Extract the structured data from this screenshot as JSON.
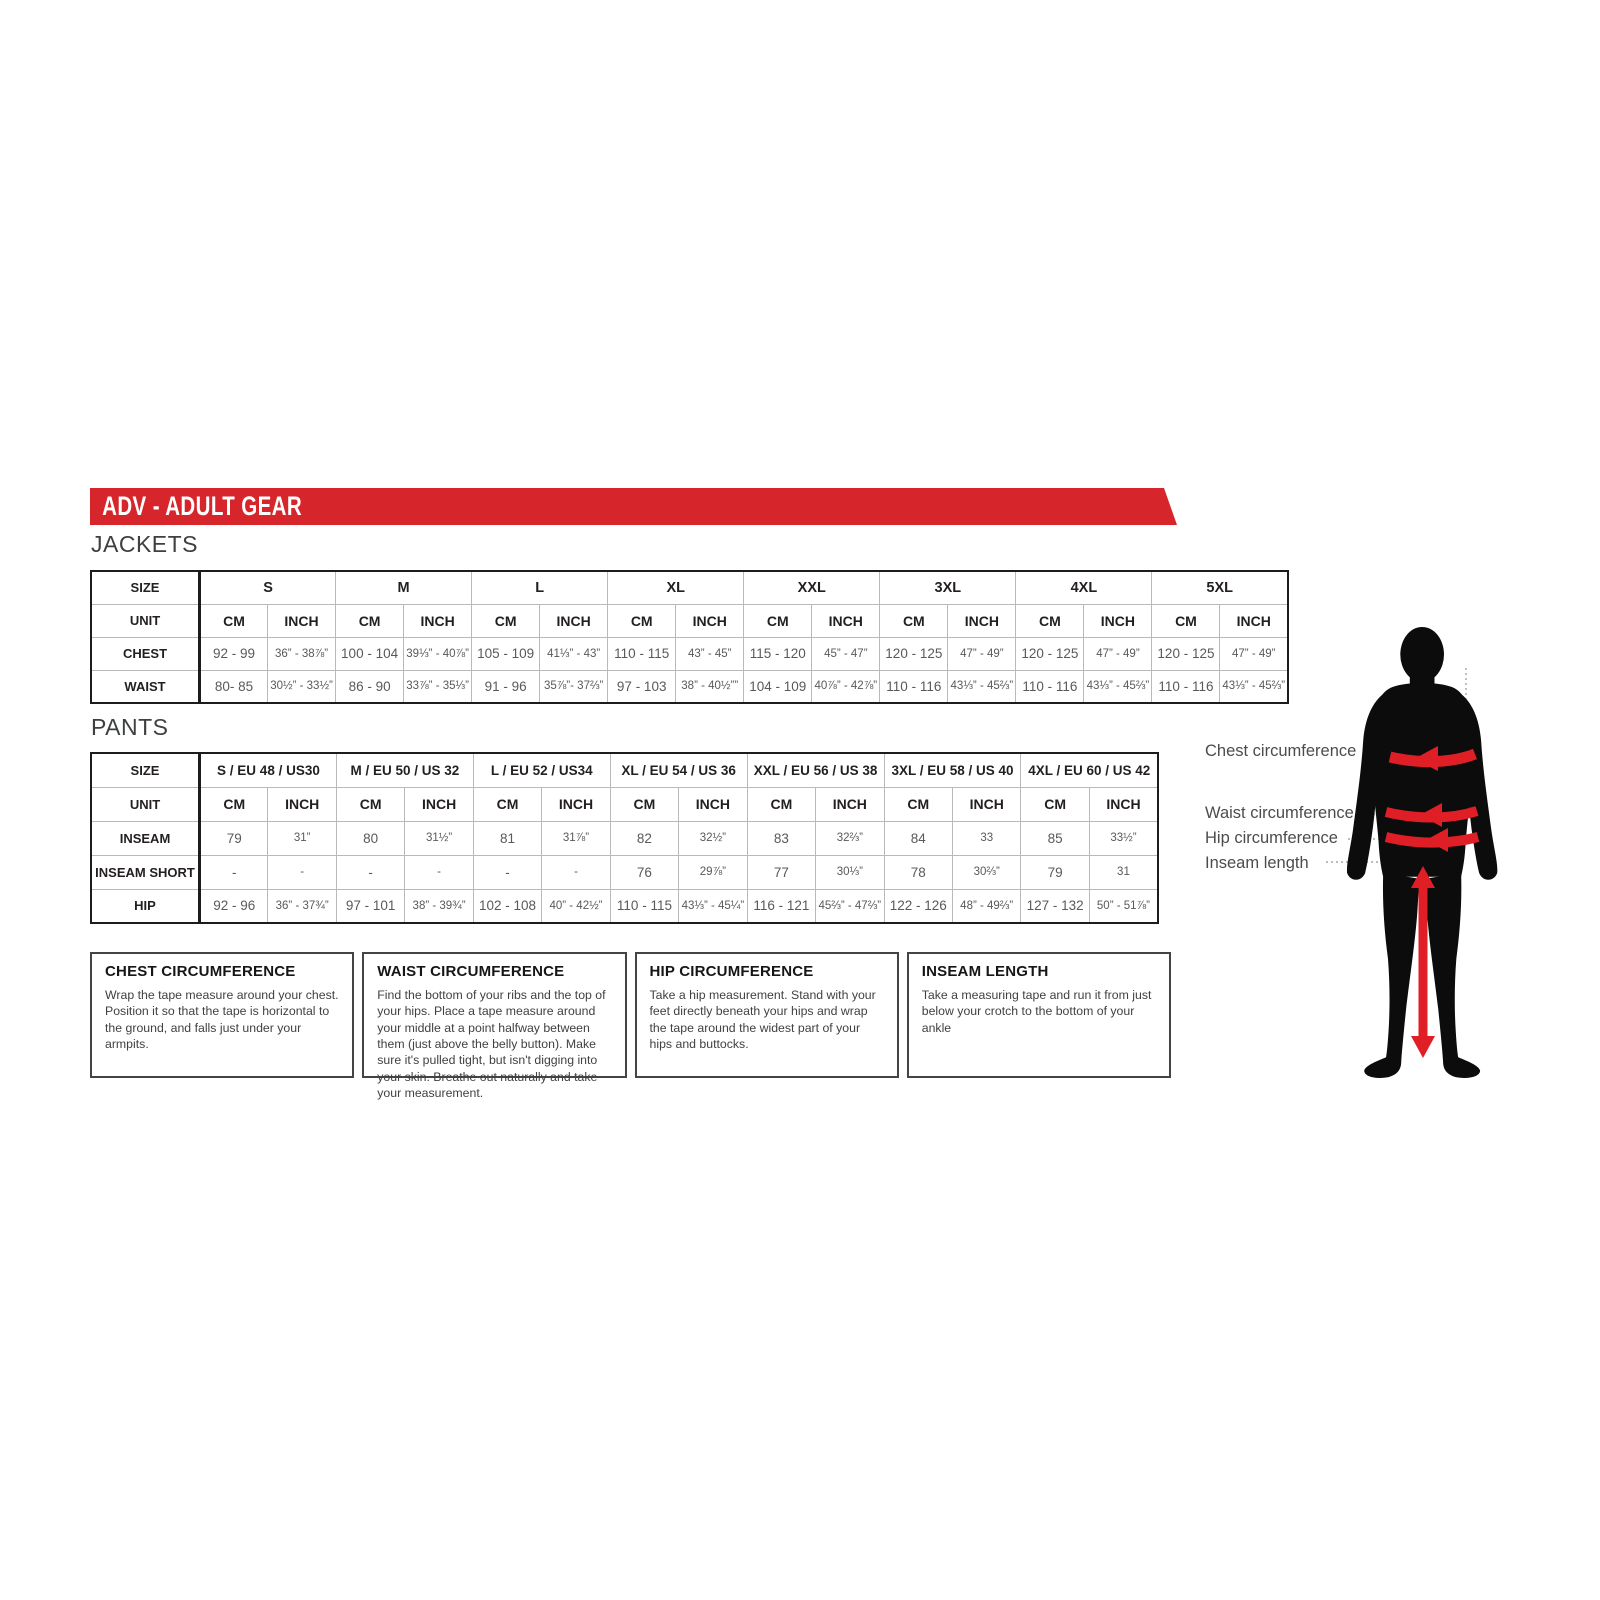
{
  "colors": {
    "banner_red": "#d6252b",
    "arrow_red": "#e01e25",
    "silhouette_black": "#0c0c0c",
    "table_border": "#1c1c1e",
    "grid_line": "#b7b9bb",
    "header_text": "#231f20",
    "value_text": "#58595b"
  },
  "banner": {
    "title": "ADV - ADULT GEAR"
  },
  "jackets": {
    "section_label": "JACKETS",
    "size_header": "SIZE",
    "unit_header": "UNIT",
    "cm_label": "CM",
    "inch_label": "INCH",
    "sizes": [
      "S",
      "M",
      "L",
      "XL",
      "XXL",
      "3XL",
      "4XL",
      "5XL"
    ],
    "rows": [
      {
        "label": "CHEST",
        "cells": [
          [
            "92 - 99",
            "36” - 38⅞”"
          ],
          [
            "100 - 104",
            "39⅓” - 40⅞”"
          ],
          [
            "105 - 109",
            "41⅓” - 43”"
          ],
          [
            "110 - 115",
            "43” - 45”"
          ],
          [
            "115 - 120",
            "45” - 47”"
          ],
          [
            "120 - 125",
            "47” - 49”"
          ],
          [
            "120 - 125",
            "47” - 49”"
          ],
          [
            "120 - 125",
            "47” - 49”"
          ]
        ]
      },
      {
        "label": "WAIST",
        "cells": [
          [
            "80- 85",
            "30½” - 33½”"
          ],
          [
            "86 - 90",
            "33⅞” - 35⅓”"
          ],
          [
            "91 - 96",
            "35⅞”- 37⅔”"
          ],
          [
            "97 - 103",
            "38” - 40½””"
          ],
          [
            "104 - 109",
            "40⅞” - 42⅞”"
          ],
          [
            "110 - 116",
            "43⅓” - 45⅔”"
          ],
          [
            "110 - 116",
            "43⅓” - 45⅔”"
          ],
          [
            "110 - 116",
            "43⅓” - 45⅔”"
          ]
        ]
      }
    ]
  },
  "pants": {
    "section_label": "PANTS",
    "size_header": "SIZE",
    "unit_header": "UNIT",
    "cm_label": "CM",
    "inch_label": "INCH",
    "sizes": [
      "S / EU 48 / US30",
      "M / EU 50 / US 32",
      "L / EU 52 / US34",
      "XL / EU 54 / US 36",
      "XXL / EU 56 / US 38",
      "3XL / EU 58 / US 40",
      "4XL / EU 60 / US 42"
    ],
    "rows": [
      {
        "label": "INSEAM",
        "cells": [
          [
            "79",
            "31”"
          ],
          [
            "80",
            "31½”"
          ],
          [
            "81",
            "31⅞”"
          ],
          [
            "82",
            "32½”"
          ],
          [
            "83",
            "32⅔”"
          ],
          [
            "84",
            "33"
          ],
          [
            "85",
            "33½”"
          ]
        ]
      },
      {
        "label": "INSEAM SHORT",
        "cells": [
          [
            "-",
            "-"
          ],
          [
            "-",
            "-"
          ],
          [
            "-",
            "-"
          ],
          [
            "76",
            "29⅞”"
          ],
          [
            "77",
            "30⅓”"
          ],
          [
            "78",
            "30⅔”"
          ],
          [
            "79",
            "31"
          ]
        ]
      },
      {
        "label": "HIP",
        "cells": [
          [
            "92 - 96",
            "36” - 37¾”"
          ],
          [
            "97 - 101",
            "38” - 39¾”"
          ],
          [
            "102 - 108",
            "40” - 42½”"
          ],
          [
            "110 - 115",
            "43⅓” - 45¼”"
          ],
          [
            "116 - 121",
            "45⅔” - 47⅔”"
          ],
          [
            "122 - 126",
            "48” - 49⅔”"
          ],
          [
            "127 - 132",
            "50” - 51⅞”"
          ]
        ]
      }
    ]
  },
  "instructions": [
    {
      "title": "CHEST CIRCUMFERENCE",
      "body": "Wrap the tape measure around your chest. Position it so that the tape is horizontal to the ground, and falls just under your armpits."
    },
    {
      "title": "WAIST CIRCUMFERENCE",
      "body": "Find the bottom of your ribs and the top of your hips. Place a tape measure around your middle at a point halfway between them (just above the belly button). Make sure it's pulled tight, but isn't digging into your skin. Breathe out naturally and take your measurement."
    },
    {
      "title": "HIP CIRCUMFERENCE",
      "body": "Take a hip measurement. Stand with your feet directly beneath your hips and wrap the tape around the widest part of your hips and buttocks."
    },
    {
      "title": "INSEAM LENGTH",
      "body": "Take a measuring tape and run it from just below your crotch to the bottom of your ankle"
    }
  ],
  "diagram": {
    "labels": [
      "Chest circumference",
      "Waist circumference",
      "Hip circumference",
      "Inseam length"
    ]
  }
}
